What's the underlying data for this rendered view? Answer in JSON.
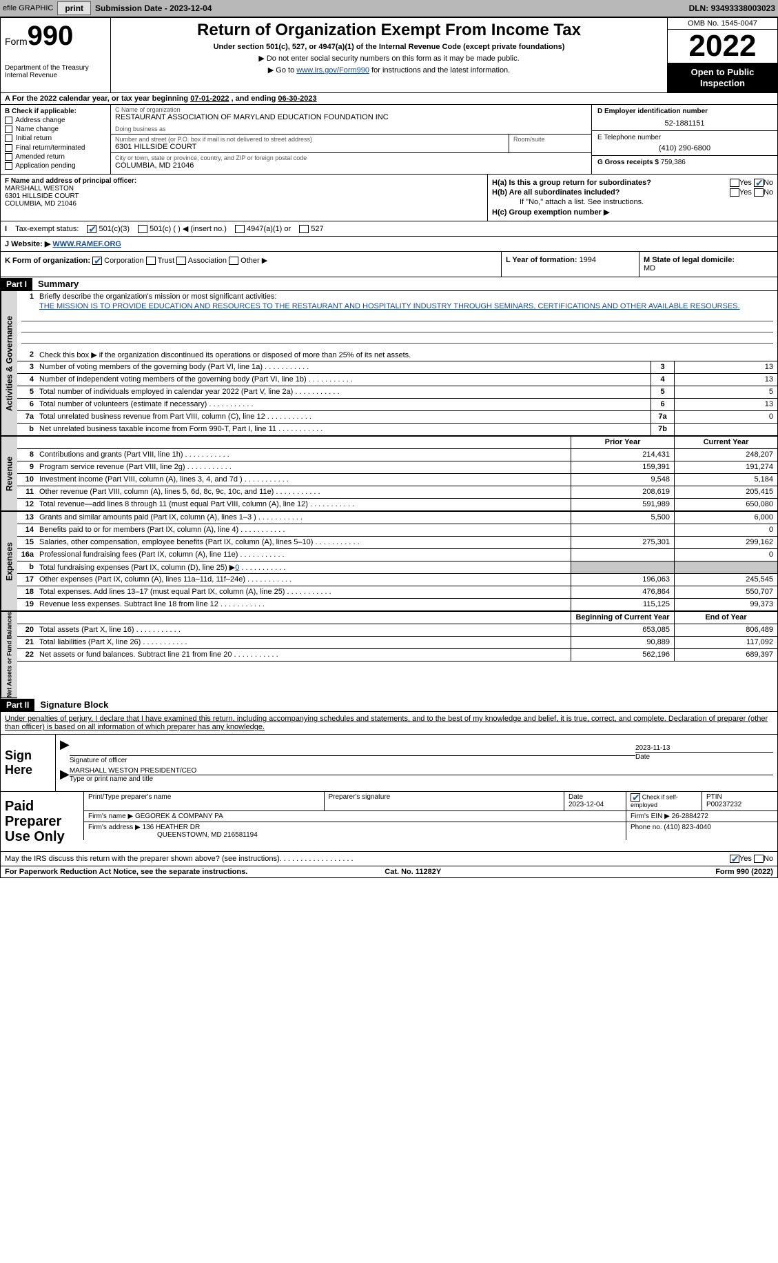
{
  "top_bar": {
    "efile_label": "efile GRAPHIC",
    "print_btn": "print",
    "submission_date_label": "Submission Date - ",
    "submission_date": "2023-12-04",
    "dln_label": "DLN: ",
    "dln": "93493338003023"
  },
  "header": {
    "form_label": "Form",
    "form_num": "990",
    "dept": "Department of the Treasury\nInternal Revenue",
    "title": "Return of Organization Exempt From Income Tax",
    "sub1": "Under section 501(c), 527, or 4947(a)(1) of the Internal Revenue Code (except private foundations)",
    "sub2": "Do not enter social security numbers on this form as it may be made public.",
    "sub3_pre": "Go to ",
    "sub3_link": "www.irs.gov/Form990",
    "sub3_post": " for instructions and the latest information.",
    "omb": "OMB No. 1545-0047",
    "year": "2022",
    "open_pub": "Open to Public Inspection"
  },
  "row_a": {
    "text_pre": "For the 2022 calendar year, or tax year beginning ",
    "begin": "07-01-2022",
    "mid": "    , and ending ",
    "end": "06-30-2023"
  },
  "col_b": {
    "header": "B Check if applicable:",
    "items": [
      "Address change",
      "Name change",
      "Initial return",
      "Final return/terminated",
      "Amended return",
      "Application pending"
    ]
  },
  "col_c": {
    "name_label": "C Name of organization",
    "name": "RESTAURANT ASSOCIATION OF MARYLAND EDUCATION FOUNDATION INC",
    "dba_label": "Doing business as",
    "dba": "",
    "addr_label": "Number and street (or P.O. box if mail is not delivered to street address)",
    "addr": "6301 HILLSIDE COURT",
    "room_label": "Room/suite",
    "city_label": "City or town, state or province, country, and ZIP or foreign postal code",
    "city": "COLUMBIA, MD  21046"
  },
  "col_d": {
    "ein_label": "D Employer identification number",
    "ein": "52-1881151",
    "phone_label": "E Telephone number",
    "phone": "(410) 290-6800",
    "gross_label": "G Gross receipts $ ",
    "gross": "759,386"
  },
  "col_f": {
    "label": "F  Name and address of principal officer:",
    "name": "MARSHALL WESTON",
    "addr1": "6301 HILLSIDE COURT",
    "addr2": "COLUMBIA, MD  21046"
  },
  "col_h": {
    "ha": "H(a)  Is this a group return for subordinates?",
    "hb": "H(b)  Are all subordinates included?",
    "hb_note": "If \"No,\" attach a list. See instructions.",
    "hc": "H(c)  Group exemption number ▶",
    "yes": "Yes",
    "no": "No"
  },
  "row_i": {
    "label": "Tax-exempt status:",
    "opts": [
      "501(c)(3)",
      "501(c) (  ) ◀ (insert no.)",
      "4947(a)(1) or",
      "527"
    ]
  },
  "row_j": {
    "label": "J   Website: ▶  ",
    "val": "WWW.RAMEF.ORG"
  },
  "row_k": {
    "label": "K Form of organization:",
    "opts": [
      "Corporation",
      "Trust",
      "Association",
      "Other ▶"
    ]
  },
  "row_l": {
    "label": "L Year of formation: ",
    "val": "1994"
  },
  "row_m": {
    "label": "M State of legal domicile:",
    "val": "MD"
  },
  "parts": {
    "p1": "Part I",
    "p1_title": "Summary",
    "p2": "Part II",
    "p2_title": "Signature Block"
  },
  "side_tabs": {
    "activities": "Activities & Governance",
    "revenue": "Revenue",
    "expenses": "Expenses",
    "net": "Net Assets or Fund Balances"
  },
  "summary": {
    "line1_label": "Briefly describe the organization's mission or most significant activities:",
    "mission": "THE MISSION IS TO PROVIDE EDUCATION AND RESOURCES TO THE RESTAURANT AND HOSPITALITY INDUSTRY THROUGH SEMINARS, CERTIFICATIONS AND OTHER AVAILABLE RESOURSES.",
    "line2": "Check this box ▶       if the organization discontinued its operations or disposed of more than 25% of its net assets.",
    "col_prior": "Prior Year",
    "col_current": "Current Year",
    "col_boy": "Beginning of Current Year",
    "col_eoy": "End of Year",
    "rows_gov": [
      {
        "n": "3",
        "t": "Number of voting members of the governing body (Part VI, line 1a)",
        "box": "3",
        "v": "13"
      },
      {
        "n": "4",
        "t": "Number of independent voting members of the governing body (Part VI, line 1b)",
        "box": "4",
        "v": "13"
      },
      {
        "n": "5",
        "t": "Total number of individuals employed in calendar year 2022 (Part V, line 2a)",
        "box": "5",
        "v": "5"
      },
      {
        "n": "6",
        "t": "Total number of volunteers (estimate if necessary)",
        "box": "6",
        "v": "13"
      },
      {
        "n": "7a",
        "t": "Total unrelated business revenue from Part VIII, column (C), line 12",
        "box": "7a",
        "v": "0"
      },
      {
        "n": "b",
        "t": "Net unrelated business taxable income from Form 990-T, Part I, line 11",
        "box": "7b",
        "v": ""
      }
    ],
    "rows_rev": [
      {
        "n": "8",
        "t": "Contributions and grants (Part VIII, line 1h)",
        "p": "214,431",
        "c": "248,207"
      },
      {
        "n": "9",
        "t": "Program service revenue (Part VIII, line 2g)",
        "p": "159,391",
        "c": "191,274"
      },
      {
        "n": "10",
        "t": "Investment income (Part VIII, column (A), lines 3, 4, and 7d )",
        "p": "9,548",
        "c": "5,184"
      },
      {
        "n": "11",
        "t": "Other revenue (Part VIII, column (A), lines 5, 6d, 8c, 9c, 10c, and 11e)",
        "p": "208,619",
        "c": "205,415"
      },
      {
        "n": "12",
        "t": "Total revenue—add lines 8 through 11 (must equal Part VIII, column (A), line 12)",
        "p": "591,989",
        "c": "650,080"
      }
    ],
    "rows_exp": [
      {
        "n": "13",
        "t": "Grants and similar amounts paid (Part IX, column (A), lines 1–3 )",
        "p": "5,500",
        "c": "6,000"
      },
      {
        "n": "14",
        "t": "Benefits paid to or for members (Part IX, column (A), line 4)",
        "p": "",
        "c": "0"
      },
      {
        "n": "15",
        "t": "Salaries, other compensation, employee benefits (Part IX, column (A), lines 5–10)",
        "p": "275,301",
        "c": "299,162"
      },
      {
        "n": "16a",
        "t": "Professional fundraising fees (Part IX, column (A), line 11e)",
        "p": "",
        "c": "0"
      },
      {
        "n": "b",
        "t": "Total fundraising expenses (Part IX, column (D), line 25) ▶",
        "p": "shade",
        "c": "shade",
        "link": "0"
      },
      {
        "n": "17",
        "t": "Other expenses (Part IX, column (A), lines 11a–11d, 11f–24e)",
        "p": "196,063",
        "c": "245,545"
      },
      {
        "n": "18",
        "t": "Total expenses. Add lines 13–17 (must equal Part IX, column (A), line 25)",
        "p": "476,864",
        "c": "550,707"
      },
      {
        "n": "19",
        "t": "Revenue less expenses. Subtract line 18 from line 12",
        "p": "115,125",
        "c": "99,373"
      }
    ],
    "rows_net": [
      {
        "n": "20",
        "t": "Total assets (Part X, line 16)",
        "p": "653,085",
        "c": "806,489"
      },
      {
        "n": "21",
        "t": "Total liabilities (Part X, line 26)",
        "p": "90,889",
        "c": "117,092"
      },
      {
        "n": "22",
        "t": "Net assets or fund balances. Subtract line 21 from line 20",
        "p": "562,196",
        "c": "689,397"
      }
    ]
  },
  "sig": {
    "penalty": "Under penalties of perjury, I declare that I have examined this return, including accompanying schedules and statements, and to the best of my knowledge and belief, it is true, correct, and complete. Declaration of preparer (other than officer) is based on all information of which preparer has any knowledge.",
    "sign_here": "Sign Here",
    "sig_officer": "Signature of officer",
    "sig_date": "2023-11-13",
    "date_label": "Date",
    "name_title": "MARSHALL WESTON  PRESIDENT/CEO",
    "name_label": "Type or print name and title"
  },
  "prep": {
    "label": "Paid Preparer Use Only",
    "r1": {
      "c1_label": "Print/Type preparer's name",
      "c1": "",
      "c2_label": "Preparer's signature",
      "c2": "",
      "c3_label": "Date",
      "c3": "2023-12-04",
      "c4_label": "Check         if self-employed",
      "c5_label": "PTIN",
      "c5": "P00237232"
    },
    "r2": {
      "firm_label": "Firm's name      ▶ ",
      "firm": "GEGOREK & COMPANY PA",
      "ein_label": "Firm's EIN ▶ ",
      "ein": "26-2884272"
    },
    "r3": {
      "addr_label": "Firm's address ▶ ",
      "addr1": "136 HEATHER DR",
      "addr2": "QUEENSTOWN, MD  216581194",
      "phone_label": "Phone no. ",
      "phone": "(410) 823-4040"
    }
  },
  "footer": {
    "q": "May the IRS discuss this return with the preparer shown above? (see instructions)",
    "yes": "Yes",
    "no": "No",
    "pra": "For Paperwork Reduction Act Notice, see the separate instructions.",
    "cat": "Cat. No. 11282Y",
    "form": "Form 990 (2022)"
  },
  "colors": {
    "link": "#1a4b8c",
    "check": "#2a5a9a",
    "side_bg": "#d8d8d8",
    "shade": "#c8c8c8",
    "topbar": "#b8b8b8"
  }
}
